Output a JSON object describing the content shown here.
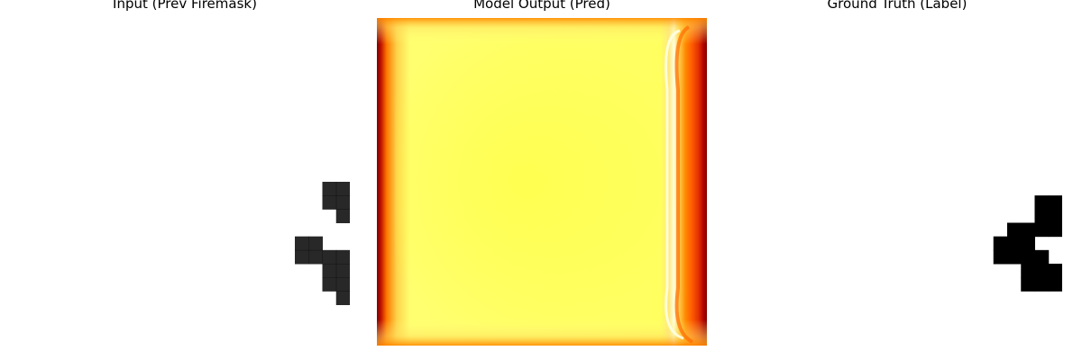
{
  "chart_data": [
    {
      "type": "heatmap",
      "title": "Input (Prev Firemask)",
      "colormap": "gray_r",
      "grid": false,
      "cells": [
        {
          "row": 12,
          "col": 22,
          "value": 0.9
        },
        {
          "row": 12,
          "col": 23,
          "value": 0.9
        },
        {
          "row": 13,
          "col": 22,
          "value": 0.9
        },
        {
          "row": 13,
          "col": 23,
          "value": 0.9
        },
        {
          "row": 14,
          "col": 23,
          "value": 0.9
        },
        {
          "row": 16,
          "col": 20,
          "value": 0.9
        },
        {
          "row": 16,
          "col": 21,
          "value": 0.9
        },
        {
          "row": 17,
          "col": 20,
          "value": 0.9
        },
        {
          "row": 17,
          "col": 21,
          "value": 0.9
        },
        {
          "row": 17,
          "col": 22,
          "value": 0.9
        },
        {
          "row": 17,
          "col": 23,
          "value": 0.9
        },
        {
          "row": 18,
          "col": 22,
          "value": 0.9
        },
        {
          "row": 18,
          "col": 23,
          "value": 0.9
        },
        {
          "row": 19,
          "col": 22,
          "value": 0.9
        },
        {
          "row": 19,
          "col": 23,
          "value": 0.9
        },
        {
          "row": 20,
          "col": 23,
          "value": 0.9
        }
      ]
    },
    {
      "type": "heatmap",
      "title": "Model Output (Pred)",
      "colormap": "hot",
      "grid": false,
      "description_colors": {
        "edge": "#a00000",
        "mid": "#ff8000",
        "center": "#ffff55"
      }
    },
    {
      "type": "heatmap",
      "title": "Ground Truth (Label)",
      "colormap": "gray_r",
      "grid": false,
      "cells": [
        {
          "row": 13,
          "col": 22,
          "value": 1
        },
        {
          "row": 13,
          "col": 23,
          "value": 1
        },
        {
          "row": 14,
          "col": 22,
          "value": 1
        },
        {
          "row": 14,
          "col": 23,
          "value": 1
        },
        {
          "row": 15,
          "col": 20,
          "value": 1
        },
        {
          "row": 15,
          "col": 21,
          "value": 1
        },
        {
          "row": 15,
          "col": 22,
          "value": 1
        },
        {
          "row": 15,
          "col": 23,
          "value": 1
        },
        {
          "row": 16,
          "col": 19,
          "value": 1
        },
        {
          "row": 16,
          "col": 20,
          "value": 1
        },
        {
          "row": 16,
          "col": 21,
          "value": 1
        },
        {
          "row": 17,
          "col": 19,
          "value": 1
        },
        {
          "row": 17,
          "col": 20,
          "value": 1
        },
        {
          "row": 17,
          "col": 21,
          "value": 1
        },
        {
          "row": 17,
          "col": 22,
          "value": 1
        },
        {
          "row": 18,
          "col": 21,
          "value": 1
        },
        {
          "row": 18,
          "col": 22,
          "value": 1
        },
        {
          "row": 18,
          "col": 23,
          "value": 1
        },
        {
          "row": 19,
          "col": 21,
          "value": 1
        },
        {
          "row": 19,
          "col": 22,
          "value": 1
        },
        {
          "row": 19,
          "col": 23,
          "value": 1
        }
      ]
    }
  ]
}
